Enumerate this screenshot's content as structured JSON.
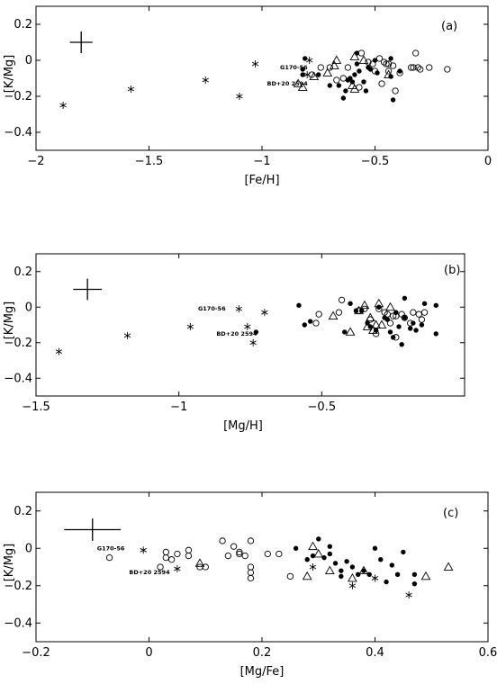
{
  "chart_data": [
    {
      "type": "scatter",
      "panel_label": "(a)",
      "xlabel": "[Fe/H]",
      "ylabel": "[K/Mg]",
      "xlim": [
        -2,
        0
      ],
      "ylim": [
        -0.5,
        0.3
      ],
      "xticks": [
        -2,
        -1.5,
        -1,
        -0.5,
        0
      ],
      "xtick_labels": [
        "−2",
        "−1.5",
        "−1",
        "−0.5",
        "0"
      ],
      "yticks": [
        -0.4,
        -0.2,
        0,
        0.2
      ],
      "ytick_labels": [
        "−0.4",
        "−0.2",
        "0",
        "0.2"
      ],
      "error_bar": {
        "x": -1.8,
        "y": 0.1,
        "dx": 0.05,
        "dy": 0.06
      },
      "annotations": [
        {
          "text": "G170-56",
          "x": -0.79,
          "y": -0.04
        },
        {
          "text": "BD+20 2594",
          "x": -0.79,
          "y": -0.13
        }
      ],
      "series": [
        {
          "marker": "star",
          "points": [
            [
              -1.88,
              -0.25
            ],
            [
              -1.58,
              -0.16
            ],
            [
              -1.25,
              -0.11
            ],
            [
              -1.1,
              -0.2
            ],
            [
              -1.03,
              -0.02
            ],
            [
              -0.79,
              0.0
            ],
            [
              -0.8,
              -0.08
            ]
          ]
        },
        {
          "marker": "filled-circle",
          "points": [
            [
              -0.82,
              -0.05
            ],
            [
              -0.82,
              -0.08
            ],
            [
              -0.81,
              0.01
            ],
            [
              -0.75,
              -0.08
            ],
            [
              -0.7,
              -0.14
            ],
            [
              -0.66,
              -0.14
            ],
            [
              -0.64,
              -0.21
            ],
            [
              -0.63,
              -0.17
            ],
            [
              -0.62,
              -0.11
            ],
            [
              -0.61,
              -0.1
            ],
            [
              -0.6,
              -0.12
            ],
            [
              -0.59,
              -0.08
            ],
            [
              -0.58,
              -0.02
            ],
            [
              -0.58,
              0.04
            ],
            [
              -0.57,
              -0.06
            ],
            [
              -0.55,
              -0.12
            ],
            [
              -0.54,
              -0.17
            ],
            [
              -0.53,
              -0.04
            ],
            [
              -0.52,
              -0.05
            ],
            [
              -0.5,
              0.0
            ],
            [
              -0.49,
              -0.07
            ],
            [
              -0.43,
              0.01
            ],
            [
              -0.43,
              -0.09
            ],
            [
              -0.42,
              -0.22
            ],
            [
              -0.39,
              -0.06
            ]
          ]
        },
        {
          "marker": "open-circle",
          "points": [
            [
              -0.78,
              -0.08
            ],
            [
              -0.74,
              -0.04
            ],
            [
              -0.7,
              -0.04
            ],
            [
              -0.67,
              -0.11
            ],
            [
              -0.64,
              -0.1
            ],
            [
              -0.62,
              -0.04
            ],
            [
              -0.57,
              -0.15
            ],
            [
              -0.56,
              0.04
            ],
            [
              -0.53,
              -0.01
            ],
            [
              -0.51,
              -0.02
            ],
            [
              -0.5,
              -0.06
            ],
            [
              -0.48,
              0.01
            ],
            [
              -0.47,
              -0.13
            ],
            [
              -0.46,
              -0.01
            ],
            [
              -0.45,
              -0.02
            ],
            [
              -0.44,
              -0.02
            ],
            [
              -0.44,
              -0.06
            ],
            [
              -0.42,
              -0.03
            ],
            [
              -0.41,
              -0.17
            ],
            [
              -0.39,
              -0.07
            ],
            [
              -0.34,
              -0.04
            ],
            [
              -0.33,
              -0.04
            ],
            [
              -0.32,
              0.04
            ],
            [
              -0.31,
              -0.04
            ],
            [
              -0.3,
              -0.05
            ],
            [
              -0.26,
              -0.04
            ],
            [
              -0.18,
              -0.05
            ]
          ]
        },
        {
          "marker": "open-triangle",
          "points": [
            [
              -0.84,
              -0.13
            ],
            [
              -0.82,
              -0.15
            ],
            [
              -0.77,
              -0.09
            ],
            [
              -0.71,
              -0.07
            ],
            [
              -0.68,
              -0.03
            ],
            [
              -0.67,
              0.0
            ],
            [
              -0.6,
              -0.14
            ],
            [
              -0.59,
              -0.16
            ],
            [
              -0.59,
              0.02
            ],
            [
              -0.55,
              0.0
            ],
            [
              -0.44,
              -0.08
            ]
          ]
        }
      ]
    },
    {
      "type": "scatter",
      "panel_label": "(b)",
      "xlabel": "[Mg/H]",
      "ylabel": "[K/Mg]",
      "xlim": [
        -1.5,
        0
      ],
      "ylim": [
        -0.5,
        0.3
      ],
      "xticks": [
        -1.5,
        -1,
        -0.5
      ],
      "xtick_labels": [
        "−1.5",
        "−1",
        "−0.5"
      ],
      "yticks": [
        -0.4,
        -0.2,
        0,
        0.2
      ],
      "ytick_labels": [
        "−0.4",
        "−0.2",
        "0",
        "0.2"
      ],
      "error_bar": {
        "x": -1.32,
        "y": 0.1,
        "dx": 0.05,
        "dy": 0.06
      },
      "annotations": [
        {
          "text": "G170-56",
          "x": -0.83,
          "y": -0.01
        },
        {
          "text": "BD+20 2594",
          "x": -0.72,
          "y": -0.15
        }
      ],
      "series": [
        {
          "marker": "star",
          "points": [
            [
              -1.42,
              -0.25
            ],
            [
              -1.18,
              -0.16
            ],
            [
              -0.96,
              -0.11
            ],
            [
              -0.79,
              -0.01
            ],
            [
              -0.76,
              -0.11
            ],
            [
              -0.74,
              -0.2
            ],
            [
              -0.7,
              -0.03
            ]
          ]
        },
        {
          "marker": "filled-circle",
          "points": [
            [
              -0.73,
              -0.14
            ],
            [
              -0.58,
              0.01
            ],
            [
              -0.56,
              -0.1
            ],
            [
              -0.54,
              -0.08
            ],
            [
              -0.42,
              -0.14
            ],
            [
              -0.4,
              0.02
            ],
            [
              -0.38,
              -0.02
            ],
            [
              -0.36,
              -0.02
            ],
            [
              -0.34,
              -0.09
            ],
            [
              -0.33,
              -0.11
            ],
            [
              -0.31,
              -0.13
            ],
            [
              -0.3,
              0.0
            ],
            [
              -0.28,
              -0.06
            ],
            [
              -0.27,
              -0.07
            ],
            [
              -0.26,
              -0.14
            ],
            [
              -0.25,
              -0.17
            ],
            [
              -0.24,
              -0.03
            ],
            [
              -0.23,
              -0.11
            ],
            [
              -0.22,
              -0.21
            ],
            [
              -0.21,
              -0.06
            ],
            [
              -0.21,
              0.05
            ],
            [
              -0.19,
              -0.12
            ],
            [
              -0.18,
              -0.09
            ],
            [
              -0.17,
              -0.13
            ],
            [
              -0.15,
              -0.1
            ],
            [
              -0.14,
              0.02
            ],
            [
              -0.1,
              0.01
            ],
            [
              -0.1,
              -0.15
            ]
          ]
        },
        {
          "marker": "open-circle",
          "points": [
            [
              -0.52,
              -0.09
            ],
            [
              -0.51,
              -0.04
            ],
            [
              -0.44,
              -0.03
            ],
            [
              -0.43,
              0.04
            ],
            [
              -0.37,
              -0.02
            ],
            [
              -0.35,
              -0.01
            ],
            [
              -0.33,
              -0.07
            ],
            [
              -0.31,
              -0.15
            ],
            [
              -0.3,
              -0.01
            ],
            [
              -0.28,
              -0.03
            ],
            [
              -0.27,
              -0.04
            ],
            [
              -0.26,
              -0.09
            ],
            [
              -0.25,
              -0.05
            ],
            [
              -0.24,
              -0.05
            ],
            [
              -0.24,
              -0.17
            ],
            [
              -0.22,
              -0.04
            ],
            [
              -0.21,
              -0.06
            ],
            [
              -0.19,
              -0.09
            ],
            [
              -0.18,
              -0.03
            ],
            [
              -0.16,
              -0.04
            ],
            [
              -0.15,
              -0.07
            ],
            [
              -0.14,
              -0.03
            ]
          ]
        },
        {
          "marker": "open-triangle",
          "points": [
            [
              -0.46,
              -0.05
            ],
            [
              -0.4,
              -0.14
            ],
            [
              -0.37,
              -0.02
            ],
            [
              -0.35,
              0.01
            ],
            [
              -0.34,
              -0.11
            ],
            [
              -0.33,
              -0.06
            ],
            [
              -0.32,
              -0.13
            ],
            [
              -0.31,
              -0.1
            ],
            [
              -0.3,
              0.02
            ],
            [
              -0.29,
              -0.1
            ],
            [
              -0.26,
              0.0
            ]
          ]
        }
      ]
    },
    {
      "type": "scatter",
      "panel_label": "(c)",
      "xlabel": "[Mg/Fe]",
      "ylabel": "[K/Mg]",
      "xlim": [
        -0.2,
        0.6
      ],
      "ylim": [
        -0.5,
        0.3
      ],
      "xticks": [
        -0.2,
        0,
        0.2,
        0.4,
        0.6
      ],
      "xtick_labels": [
        "−0.2",
        "0",
        "0.2",
        "0.4",
        "0.6"
      ],
      "yticks": [
        -0.4,
        -0.2,
        0,
        0.2
      ],
      "ytick_labels": [
        "−0.4",
        "−0.2",
        "0",
        "0.2"
      ],
      "error_bar": {
        "x": -0.1,
        "y": 0.1,
        "dx": 0.05,
        "dy": 0.06
      },
      "annotations": [
        {
          "text": "G170-56",
          "x": -0.04,
          "y": 0.0
        },
        {
          "text": "BD+20 2594",
          "x": 0.04,
          "y": -0.13
        }
      ],
      "series": [
        {
          "marker": "star",
          "points": [
            [
              -0.01,
              -0.01
            ],
            [
              0.05,
              -0.11
            ],
            [
              0.29,
              -0.1
            ],
            [
              0.36,
              -0.2
            ],
            [
              0.4,
              -0.16
            ],
            [
              0.46,
              -0.25
            ]
          ]
        },
        {
          "marker": "filled-circle",
          "points": [
            [
              0.26,
              0.0
            ],
            [
              0.28,
              -0.06
            ],
            [
              0.29,
              -0.04
            ],
            [
              0.3,
              0.05
            ],
            [
              0.31,
              -0.05
            ],
            [
              0.32,
              0.01
            ],
            [
              0.32,
              -0.03
            ],
            [
              0.33,
              -0.08
            ],
            [
              0.34,
              -0.12
            ],
            [
              0.34,
              -0.15
            ],
            [
              0.35,
              -0.07
            ],
            [
              0.36,
              -0.1
            ],
            [
              0.37,
              -0.14
            ],
            [
              0.38,
              -0.12
            ],
            [
              0.39,
              -0.14
            ],
            [
              0.4,
              0.0
            ],
            [
              0.41,
              -0.06
            ],
            [
              0.42,
              -0.18
            ],
            [
              0.43,
              -0.09
            ],
            [
              0.44,
              -0.14
            ],
            [
              0.47,
              -0.14
            ],
            [
              0.47,
              -0.19
            ],
            [
              0.45,
              -0.02
            ]
          ]
        },
        {
          "marker": "open-circle",
          "points": [
            [
              -0.07,
              -0.05
            ],
            [
              0.02,
              -0.1
            ],
            [
              0.03,
              -0.02
            ],
            [
              0.03,
              -0.05
            ],
            [
              0.04,
              -0.06
            ],
            [
              0.05,
              -0.03
            ],
            [
              0.07,
              -0.01
            ],
            [
              0.07,
              -0.04
            ],
            [
              0.09,
              -0.1
            ],
            [
              0.1,
              -0.1
            ],
            [
              0.13,
              0.04
            ],
            [
              0.14,
              -0.04
            ],
            [
              0.15,
              0.01
            ],
            [
              0.16,
              -0.02
            ],
            [
              0.16,
              -0.03
            ],
            [
              0.17,
              -0.04
            ],
            [
              0.18,
              -0.1
            ],
            [
              0.18,
              -0.13
            ],
            [
              0.18,
              -0.16
            ],
            [
              0.18,
              0.04
            ],
            [
              0.21,
              -0.03
            ],
            [
              0.23,
              -0.03
            ],
            [
              0.25,
              -0.15
            ]
          ]
        },
        {
          "marker": "open-triangle",
          "points": [
            [
              0.09,
              -0.08
            ],
            [
              0.28,
              -0.15
            ],
            [
              0.29,
              0.01
            ],
            [
              0.3,
              -0.03
            ],
            [
              0.32,
              -0.12
            ],
            [
              0.36,
              -0.16
            ],
            [
              0.38,
              -0.12
            ],
            [
              0.49,
              -0.15
            ],
            [
              0.53,
              -0.1
            ]
          ]
        }
      ]
    }
  ]
}
